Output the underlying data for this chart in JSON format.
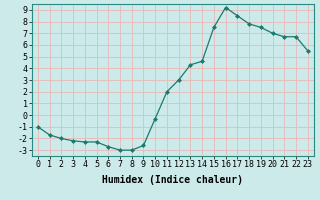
{
  "x": [
    0,
    1,
    2,
    3,
    4,
    5,
    6,
    7,
    8,
    9,
    10,
    11,
    12,
    13,
    14,
    15,
    16,
    17,
    18,
    19,
    20,
    21,
    22,
    23
  ],
  "y": [
    -1,
    -1.7,
    -2.0,
    -2.2,
    -2.3,
    -2.3,
    -2.7,
    -3.0,
    -3.0,
    -2.6,
    -0.3,
    2.0,
    3.0,
    4.3,
    4.6,
    7.5,
    9.2,
    8.5,
    7.8,
    7.5,
    7.0,
    6.7,
    6.7,
    5.5
  ],
  "xlabel": "Humidex (Indice chaleur)",
  "ylabel": "",
  "xlim": [
    -0.5,
    23.5
  ],
  "ylim": [
    -3.5,
    9.5
  ],
  "yticks": [
    -3,
    -2,
    -1,
    0,
    1,
    2,
    3,
    4,
    5,
    6,
    7,
    8,
    9
  ],
  "xticks": [
    0,
    1,
    2,
    3,
    4,
    5,
    6,
    7,
    8,
    9,
    10,
    11,
    12,
    13,
    14,
    15,
    16,
    17,
    18,
    19,
    20,
    21,
    22,
    23
  ],
  "line_color": "#1a7a6e",
  "marker": "D",
  "marker_size": 2.0,
  "bg_color": "#cdeaea",
  "grid_color": "#e8b8b8",
  "xlabel_fontsize": 7,
  "tick_fontsize": 6
}
